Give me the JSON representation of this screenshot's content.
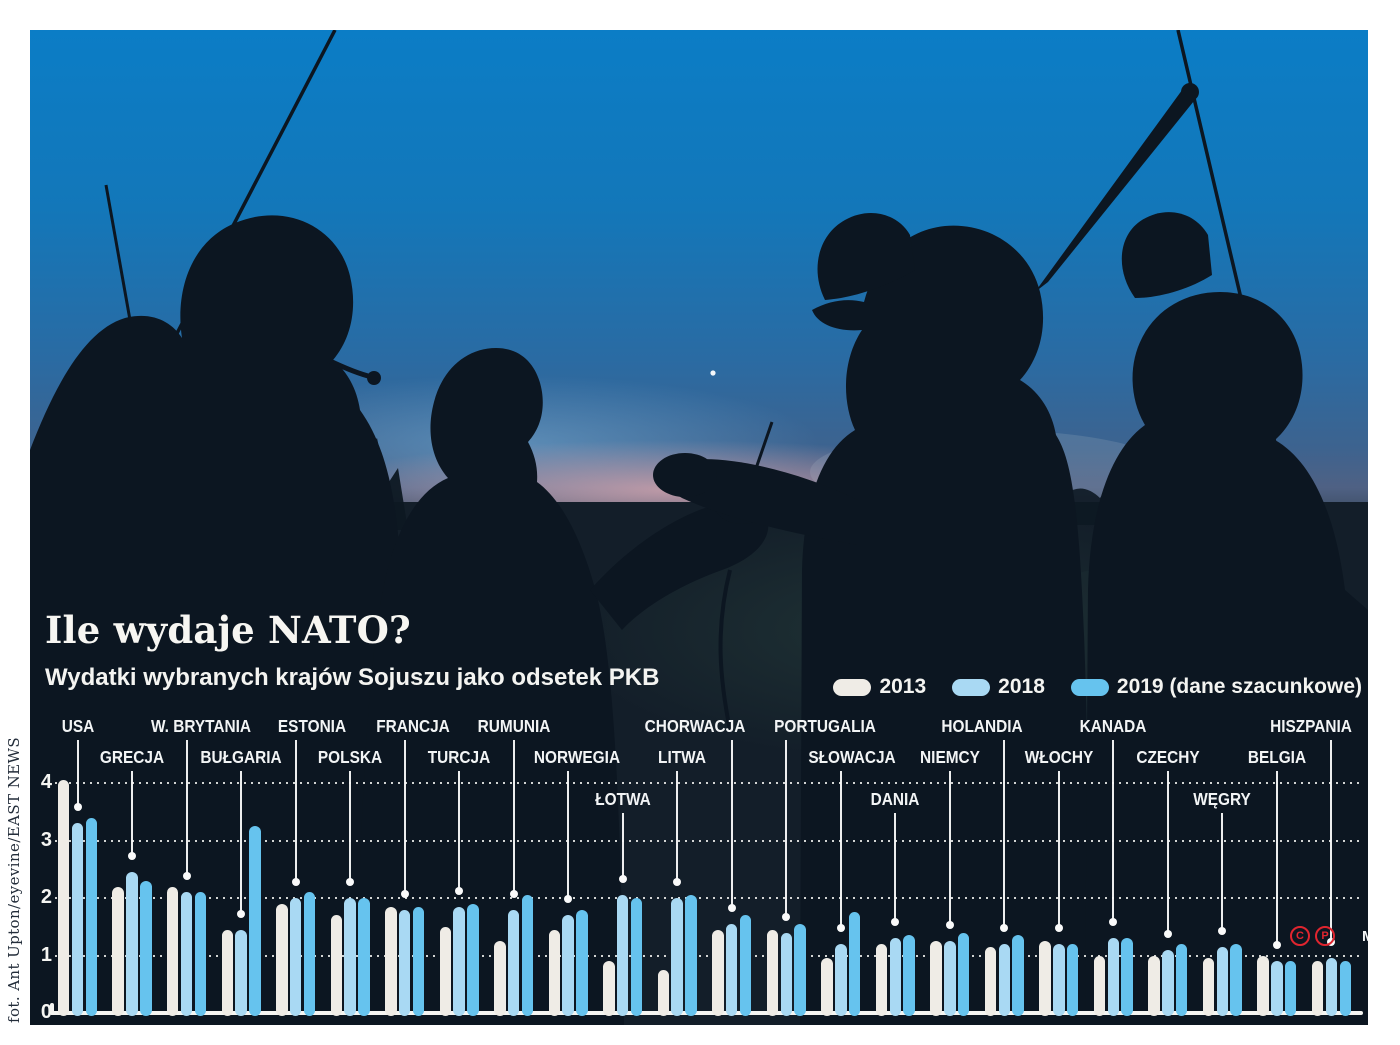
{
  "title": "Ile wydaje NATO?",
  "subtitle": "Wydatki wybranych krajów Sojuszu jako odsetek PKB",
  "photo_credit": "fot. Ant Upton/eyevine/EAST NEWS",
  "credits": {
    "icons": [
      "C",
      "P"
    ],
    "initials": "MC"
  },
  "legend": [
    {
      "label": "2013",
      "color": "#efece6"
    },
    {
      "label": "2018",
      "color": "#a9d9f3"
    },
    {
      "label": "2019 (dane szacunkowe)",
      "color": "#66c3ee"
    }
  ],
  "colors": {
    "bar_2013": "#efece6",
    "bar_2018": "#a9d9f3",
    "bar_2019": "#66c3ee",
    "accent_red": "#e0252f",
    "panel_dark": "#131d28",
    "sky_blue": "#0b7dc6"
  },
  "chart_data": {
    "type": "bar",
    "title": "Wydatki wybranych krajów Sojuszu jako odsetek PKB",
    "xlabel": "",
    "ylabel": "",
    "ylim": [
      0,
      4
    ],
    "yticks": [
      0,
      1,
      2,
      3,
      4
    ],
    "grid": "horizontal-dotted",
    "legend_position": "top-right",
    "categories": [
      "USA",
      "GRECJA",
      "W. BRYTANIA",
      "BUŁGARIA",
      "ESTONIA",
      "POLSKA",
      "FRANCJA",
      "TURCJA",
      "RUMUNIA",
      "NORWEGIA",
      "ŁOTWA",
      "LITWA",
      "CHORWACJA",
      "PORTUGALIA",
      "SŁOWACJA",
      "DANIA",
      "NIEMCY",
      "HOLANDIA",
      "WŁOCHY",
      "KANADA",
      "CZECHY",
      "WĘGRY",
      "BELGIA",
      "HISZPANIA"
    ],
    "label_rows": [
      1,
      2,
      1,
      2,
      1,
      2,
      1,
      2,
      1,
      2,
      3,
      2,
      1,
      1,
      2,
      3,
      2,
      1,
      2,
      1,
      2,
      3,
      2,
      1
    ],
    "series": [
      {
        "name": "2013",
        "values": [
          4.05,
          2.2,
          2.2,
          1.45,
          1.9,
          1.7,
          1.85,
          1.5,
          1.25,
          1.45,
          0.9,
          0.75,
          1.45,
          1.45,
          0.95,
          1.2,
          1.25,
          1.15,
          1.25,
          1.0,
          1.0,
          0.95,
          1.0,
          0.9
        ]
      },
      {
        "name": "2018",
        "values": [
          3.3,
          2.45,
          2.1,
          1.45,
          2.0,
          2.0,
          1.8,
          1.85,
          1.8,
          1.7,
          2.05,
          2.0,
          1.55,
          1.4,
          1.2,
          1.3,
          1.25,
          1.2,
          1.2,
          1.3,
          1.1,
          1.15,
          0.9,
          0.95
        ]
      },
      {
        "name": "2019 (dane szacunkowe)",
        "values": [
          3.4,
          2.3,
          2.1,
          3.25,
          2.1,
          2.0,
          1.85,
          1.9,
          2.05,
          1.8,
          2.0,
          2.05,
          1.7,
          1.55,
          1.75,
          1.35,
          1.4,
          1.35,
          1.2,
          1.3,
          1.2,
          1.2,
          0.9,
          0.9
        ]
      }
    ]
  }
}
